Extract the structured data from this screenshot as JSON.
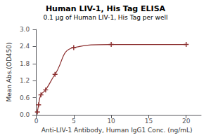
{
  "chart_data": {
    "type": "line",
    "title": "Human LIV-1, His Tag ELISA",
    "subtitle": "0.1 μg of Human LIV-1, His Tag per well",
    "x_label": "Anti-LIV-1 Antibody, Human IgG1 Conc. (ng/mL)",
    "y_label": "Mean Abs.(OD450)",
    "x": [
      0.156,
      0.313,
      0.625,
      1.25,
      2.5,
      5.0,
      10.0,
      20.0
    ],
    "values": [
      0.1,
      0.35,
      0.7,
      0.875,
      1.42,
      2.36,
      2.47,
      2.47
    ],
    "color": "#8B2E2E",
    "marker": "plus",
    "line_style": "solid",
    "xlim": [
      -0.5,
      22
    ],
    "ylim": [
      0.0,
      3.0
    ],
    "xticks": [
      0,
      5,
      10,
      15,
      20
    ],
    "yticks": [
      {
        "value": 0.0,
        "label": "0.0"
      },
      0.6,
      1.2,
      1.8,
      2.4,
      {
        "value": 3.0,
        "label": "3.0"
      }
    ],
    "grid": false
  }
}
